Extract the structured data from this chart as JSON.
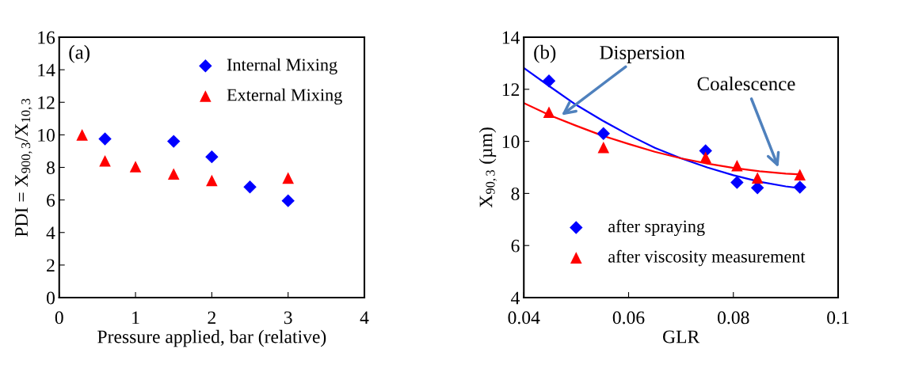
{
  "chart_data": [
    {
      "type": "scatter",
      "annotations": [
        "(a)"
      ],
      "xlabel": "Pressure applied, bar (relative)",
      "ylabel": "PDI = X$_{900,3}$/X$_{10,3}$",
      "xlim": [
        0,
        4
      ],
      "xticks": [
        0,
        1,
        2,
        3,
        4
      ],
      "ylim": [
        0,
        16
      ],
      "yticks": [
        0,
        2,
        4,
        6,
        8,
        10,
        12,
        14,
        16
      ],
      "grid": false,
      "legend": "top right",
      "series": [
        {
          "name": "Internal Mixing",
          "color": "#0000ff",
          "marker": "diamond",
          "x": [
            0.6,
            1.5,
            2,
            2.5,
            3
          ],
          "values": [
            9.75,
            9.6,
            8.65,
            6.8,
            5.95
          ]
        },
        {
          "name": "External Mixing",
          "color": "#ff0000",
          "marker": "triangle",
          "x": [
            0.3,
            0.6,
            1,
            1.5,
            2,
            3
          ],
          "values": [
            10,
            8.4,
            8.05,
            7.6,
            7.2,
            7.35
          ]
        }
      ]
    },
    {
      "type": "scatter",
      "annotations": [
        "(b)",
        "Dispersion",
        "Coalescence"
      ],
      "xlabel": "GLR",
      "ylabel": "X$_{90,3}$ (µm)",
      "xlim": [
        0.04,
        0.1
      ],
      "xticks": [
        0.04,
        0.06,
        0.08,
        {
          "value": 0.1,
          "label": "0.1"
        }
      ],
      "ylim": [
        4,
        14
      ],
      "yticks": [
        4,
        6,
        8,
        10,
        12,
        14
      ],
      "grid": false,
      "legend": "bottom left",
      "series": [
        {
          "name": "after spraying",
          "color": "#0000ff",
          "marker": "diamond",
          "x": [
            0.0448,
            0.0552,
            0.0747,
            0.0807,
            0.0846,
            0.0927
          ],
          "values": [
            12.32,
            10.3,
            9.64,
            8.42,
            8.22,
            8.24
          ]
        },
        {
          "name": "after viscosity measurement",
          "color": "#ff0000",
          "marker": "triangle",
          "x": [
            0.0448,
            0.0552,
            0.0747,
            0.0807,
            0.0846,
            0.0927
          ],
          "values": [
            11.12,
            9.77,
            9.39,
            9.07,
            8.6,
            8.72
          ]
        },
        {
          "type": "line",
          "color": "#0000ff",
          "marker": "none",
          "x": [
            0.04,
            0.045,
            0.05,
            0.055,
            0.06,
            0.065,
            0.07,
            0.075,
            0.08,
            0.085,
            0.09,
            0.0927
          ],
          "values": [
            12.82,
            12.1,
            11.4,
            10.8,
            10.25,
            9.75,
            9.35,
            9.0,
            8.7,
            8.45,
            8.27,
            8.2
          ]
        },
        {
          "type": "line",
          "color": "#ff0000",
          "marker": "none",
          "x": [
            0.04,
            0.045,
            0.05,
            0.055,
            0.06,
            0.065,
            0.07,
            0.075,
            0.08,
            0.085,
            0.09,
            0.0927
          ],
          "values": [
            11.47,
            11.0,
            10.6,
            10.22,
            9.9,
            9.6,
            9.35,
            9.15,
            8.98,
            8.85,
            8.76,
            8.73
          ]
        }
      ]
    }
  ]
}
